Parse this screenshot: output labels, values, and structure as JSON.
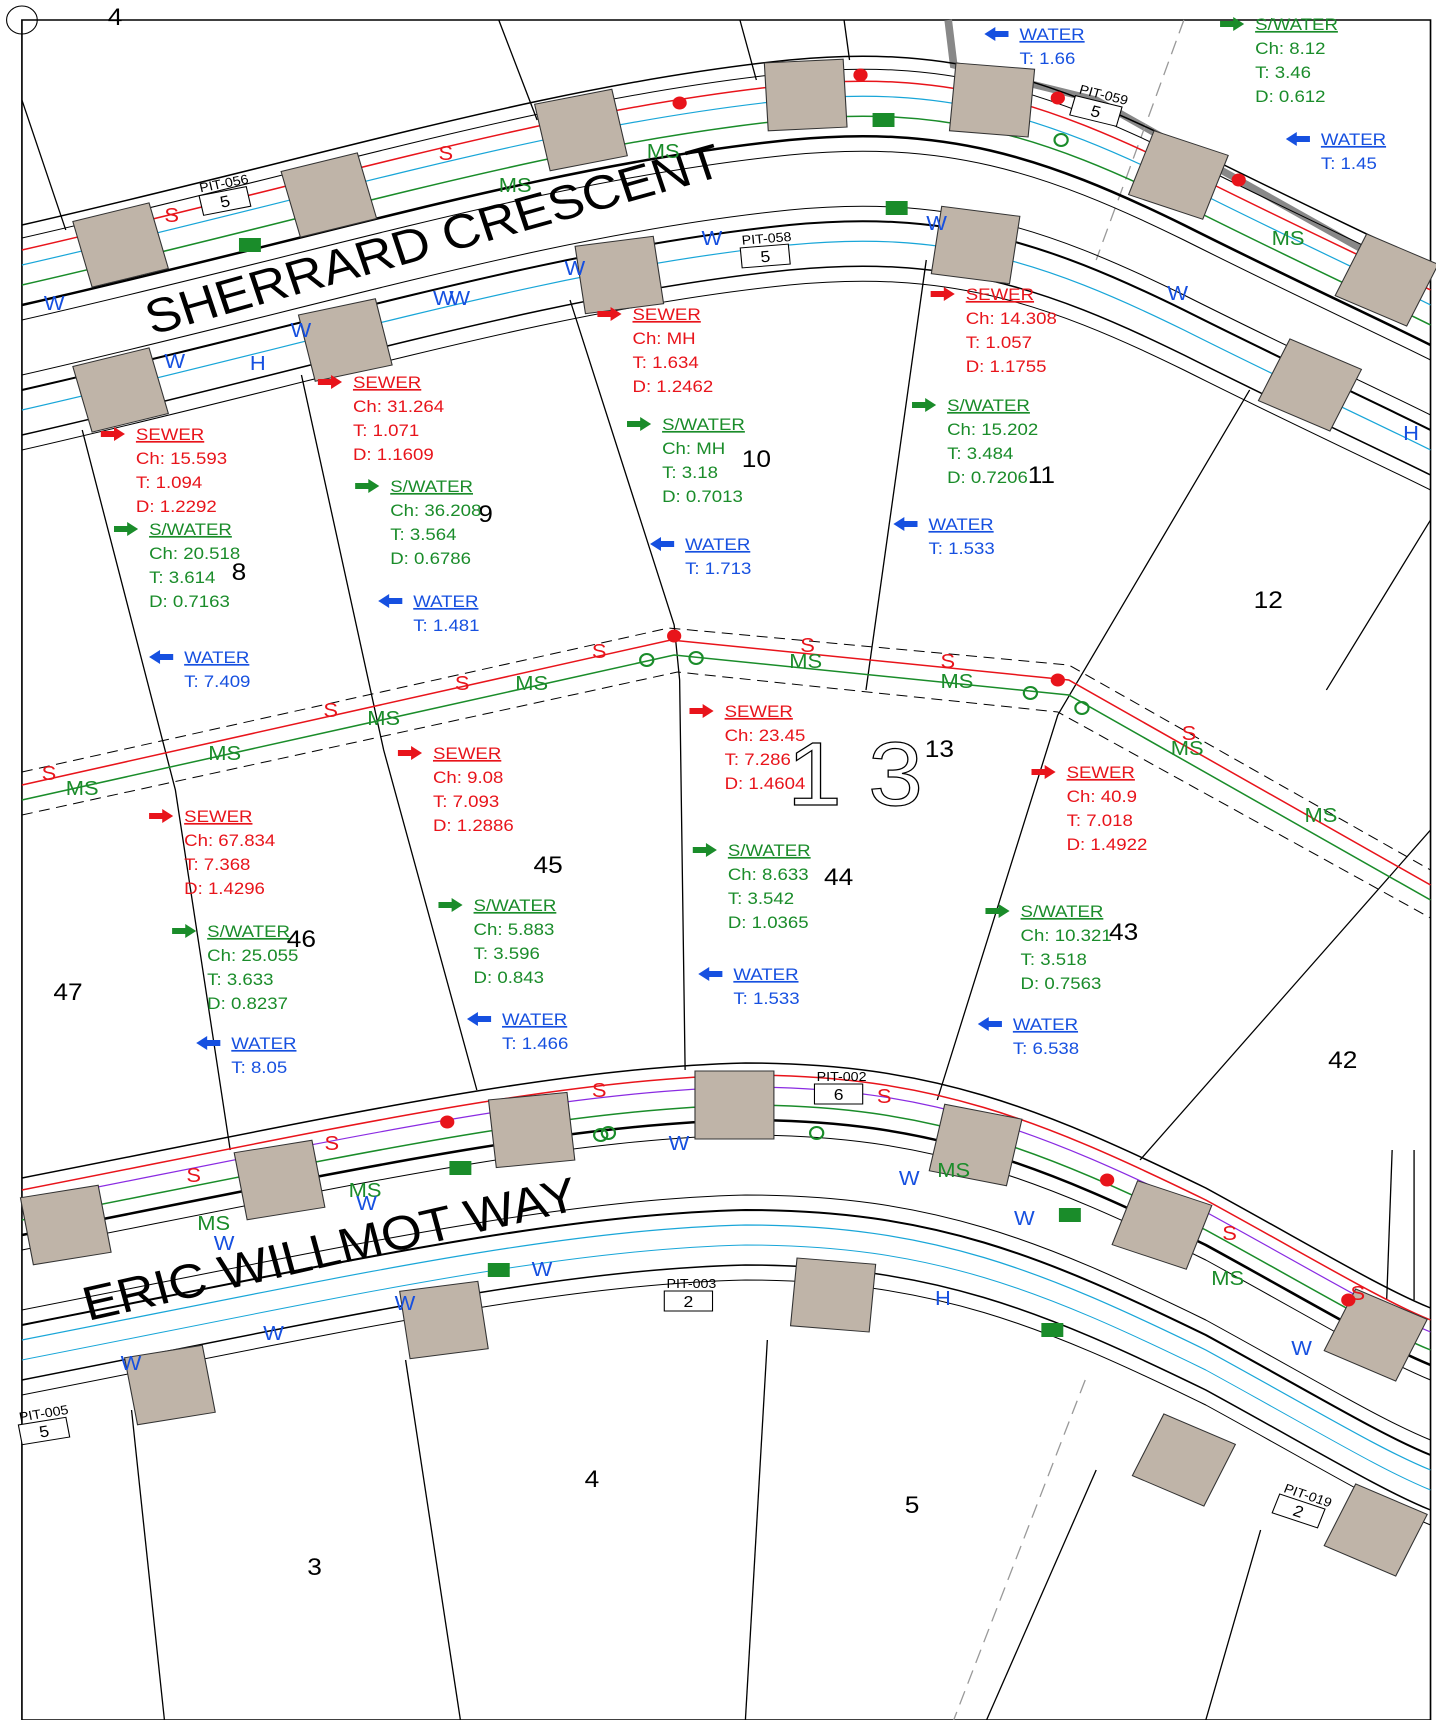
{
  "street_names": [
    "SHERRARD CRESCENT",
    "ERIC WILLMOT WAY"
  ],
  "line_labels": {
    "sewer": "S",
    "storm": "MS",
    "water": "W",
    "hydrant": "H"
  },
  "pits": [
    {
      "label": "PIT-056",
      "number": "5"
    },
    {
      "label": "PIT-058",
      "number": "5"
    },
    {
      "label": "PIT-059",
      "number": "5"
    },
    {
      "label": "PIT-002",
      "number": "6"
    },
    {
      "label": "PIT-003",
      "number": "2"
    },
    {
      "label": "PIT-005",
      "number": "5"
    },
    {
      "label": "PIT-019",
      "number": "2"
    }
  ],
  "lots": [
    "4",
    "10",
    "11",
    "9",
    "8",
    "12",
    "13",
    "45",
    "44",
    "46",
    "43",
    "47",
    "42",
    "4",
    "5",
    "3"
  ],
  "large_label": "13",
  "annotations": [
    {
      "title": "WATER",
      "lines": [
        "T:  1.66"
      ]
    },
    {
      "title": "S/WATER",
      "lines": [
        "Ch: 8.12",
        "T:   3.46",
        "D:  0.612"
      ]
    },
    {
      "title": "WATER",
      "lines": [
        "T:   1.45"
      ]
    },
    {
      "title": "SEWER",
      "lines": [
        "Ch:  MH",
        "T:   1.634",
        "D:  1.2462"
      ]
    },
    {
      "title": "SEWER",
      "lines": [
        "Ch: 14.308",
        "T:   1.057",
        "D:  1.1755"
      ]
    },
    {
      "title": "SEWER",
      "lines": [
        "Ch: 31.264",
        "T:   1.071",
        "D:  1.1609"
      ]
    },
    {
      "title": "SEWER",
      "lines": [
        "Ch:  15.593",
        "T:   1.094",
        "D:  1.2292"
      ]
    },
    {
      "title": "S/WATER",
      "lines": [
        "Ch:  MH",
        "T:   3.18",
        "D:   0.7013"
      ]
    },
    {
      "title": "S/WATER",
      "lines": [
        "Ch: 15.202",
        "T:   3.484",
        "D:  0.7206"
      ]
    },
    {
      "title": "S/WATER",
      "lines": [
        "Ch:  36.208",
        "T:    3.564",
        "D:   0.6786"
      ]
    },
    {
      "title": "S/WATER",
      "lines": [
        "Ch: 20.518",
        "T:   3.614",
        "D:  0.7163"
      ]
    },
    {
      "title": "WATER",
      "lines": [
        "T:   1.533"
      ]
    },
    {
      "title": "WATER",
      "lines": [
        "T:   1.713"
      ]
    },
    {
      "title": "WATER",
      "lines": [
        "T:    1.481"
      ]
    },
    {
      "title": "WATER",
      "lines": [
        "T:   7.409"
      ]
    },
    {
      "title": "SEWER",
      "lines": [
        "Ch: 23.45",
        "T:   7.286",
        "D:  1.4604"
      ]
    },
    {
      "title": "SEWER",
      "lines": [
        "Ch:  9.08",
        "T:   7.093",
        "D:   1.2886"
      ]
    },
    {
      "title": "SEWER",
      "lines": [
        "Ch:  67.834",
        "T:   7.368",
        "D:  1.4296"
      ]
    },
    {
      "title": "SEWER",
      "lines": [
        "Ch:  40.9",
        "T:   7.018",
        "D:  1.4922"
      ]
    },
    {
      "title": "S/WATER",
      "lines": [
        "Ch:  8.633",
        "T:   3.542",
        "D:   1.0365"
      ]
    },
    {
      "title": "S/WATER",
      "lines": [
        "Ch:  5.883",
        "T:   3.596",
        "D:   0.843"
      ]
    },
    {
      "title": "S/WATER",
      "lines": [
        "Ch:  25.055",
        "T:   3.633",
        "D:   0.8237"
      ]
    },
    {
      "title": "S/WATER",
      "lines": [
        "Ch:  10.321",
        "T:   3.518",
        "D:   0.7563"
      ]
    },
    {
      "title": "WATER",
      "lines": [
        "T:    1.533"
      ]
    },
    {
      "title": "WATER",
      "lines": [
        "T:   1.466"
      ]
    },
    {
      "title": "WATER",
      "lines": [
        "T:    8.05"
      ]
    },
    {
      "title": "WATER",
      "lines": [
        "T:   6.538"
      ]
    }
  ]
}
